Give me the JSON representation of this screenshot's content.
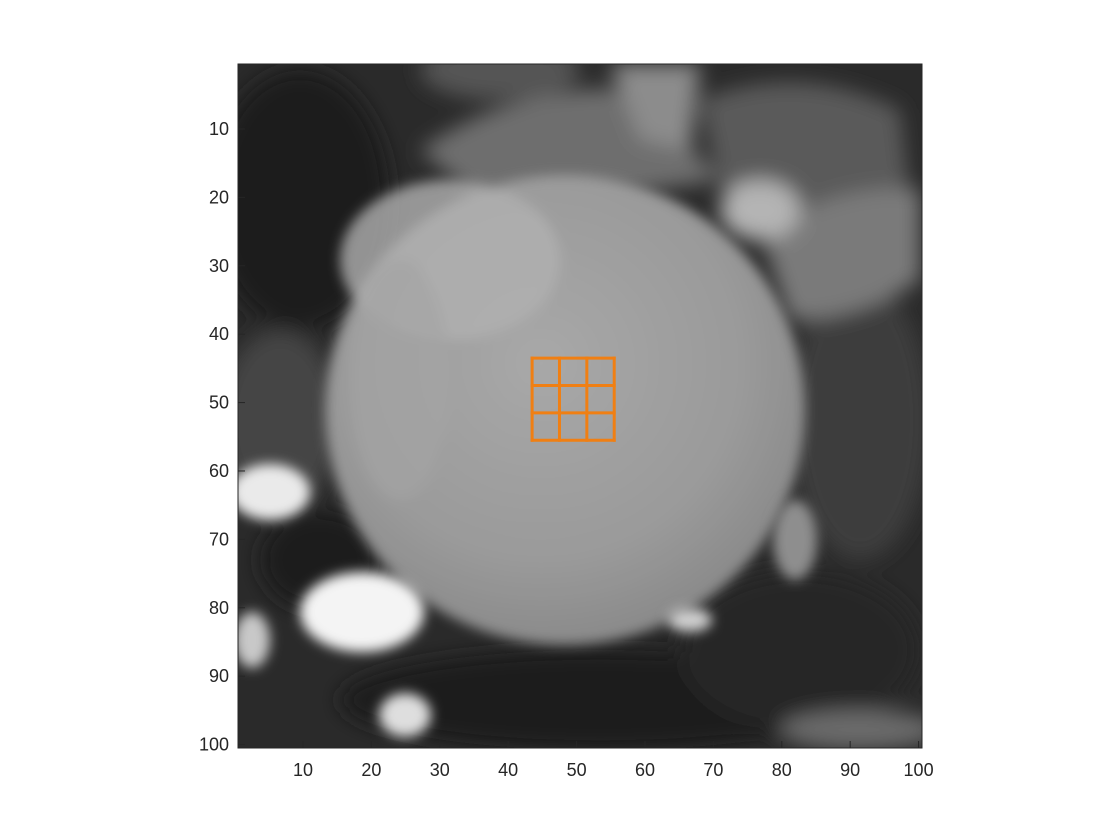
{
  "axes": {
    "x_ticks": [
      10,
      20,
      30,
      40,
      50,
      60,
      70,
      80,
      90,
      100
    ],
    "y_ticks": [
      10,
      20,
      30,
      40,
      50,
      60,
      70,
      80,
      90,
      100
    ],
    "xlim": [
      0.5,
      100.5
    ],
    "ylim": [
      0.5,
      100.5
    ],
    "y_reversed": true,
    "grid": false
  },
  "image": {
    "colormap": "gray",
    "description_kind": "grayscale MRI slice (cardiac short-axis)"
  },
  "overlay_grid": {
    "color": "#f07f13",
    "x_range": [
      43.5,
      55.5
    ],
    "y_range": [
      43.5,
      55.5
    ],
    "divisions": 3
  }
}
